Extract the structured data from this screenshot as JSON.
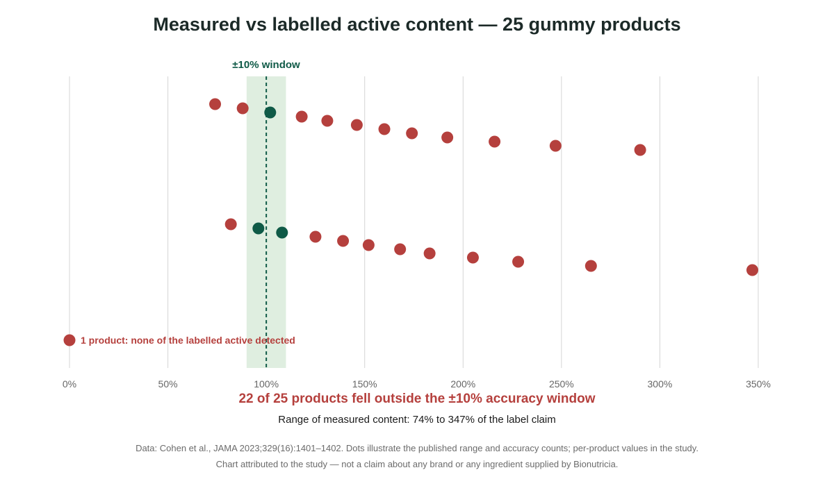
{
  "chart_data": {
    "type": "scatter",
    "title": "Measured vs labelled active content — 25 gummy products",
    "window_label": "±10% window",
    "window": [
      90,
      110
    ],
    "reference_line": 100,
    "x_ticks": [
      "0%",
      "50%",
      "100%",
      "150%",
      "200%",
      "250%",
      "300%",
      "350%"
    ],
    "xlim": [
      0,
      350
    ],
    "grid": true,
    "colors": {
      "inside": "#0f5a47",
      "outside": "#b5403d",
      "window_fill": "#dfeee0",
      "grid": "#d4d4d4",
      "title": "#1c2a28",
      "annotation": "#0f5a47"
    },
    "series": [
      {
        "row": 1,
        "points": [
          {
            "x": 74,
            "inside": false
          },
          {
            "x": 88,
            "inside": false
          },
          {
            "x": 102,
            "inside": true
          },
          {
            "x": 118,
            "inside": false
          },
          {
            "x": 131,
            "inside": false
          },
          {
            "x": 146,
            "inside": false
          },
          {
            "x": 160,
            "inside": false
          },
          {
            "x": 174,
            "inside": false
          },
          {
            "x": 192,
            "inside": false
          },
          {
            "x": 216,
            "inside": false
          },
          {
            "x": 247,
            "inside": false
          },
          {
            "x": 290,
            "inside": false
          }
        ]
      },
      {
        "row": 2,
        "points": [
          {
            "x": 82,
            "inside": false
          },
          {
            "x": 96,
            "inside": true
          },
          {
            "x": 108,
            "inside": true
          },
          {
            "x": 125,
            "inside": false
          },
          {
            "x": 139,
            "inside": false
          },
          {
            "x": 152,
            "inside": false
          },
          {
            "x": 168,
            "inside": false
          },
          {
            "x": 183,
            "inside": false
          },
          {
            "x": 205,
            "inside": false
          },
          {
            "x": 228,
            "inside": false
          },
          {
            "x": 265,
            "inside": false
          },
          {
            "x": 347,
            "inside": false
          }
        ]
      },
      {
        "row": 3,
        "points": [
          {
            "x": 0,
            "inside": false
          }
        ]
      }
    ],
    "zero_note": "1 product: none of the labelled active detected",
    "headline": "22 of 25 products fell outside the ±10% accuracy window",
    "range_note": "Range of measured content: 74% to 347% of the label claim",
    "source_line1": "Data: Cohen et al., JAMA 2023;329(16):1401–1402. Dots illustrate the published range and accuracy counts; per-product values in the study.",
    "source_line2": "Chart attributed to the study — not a claim about any brand or any ingredient supplied by Bionutricia."
  }
}
